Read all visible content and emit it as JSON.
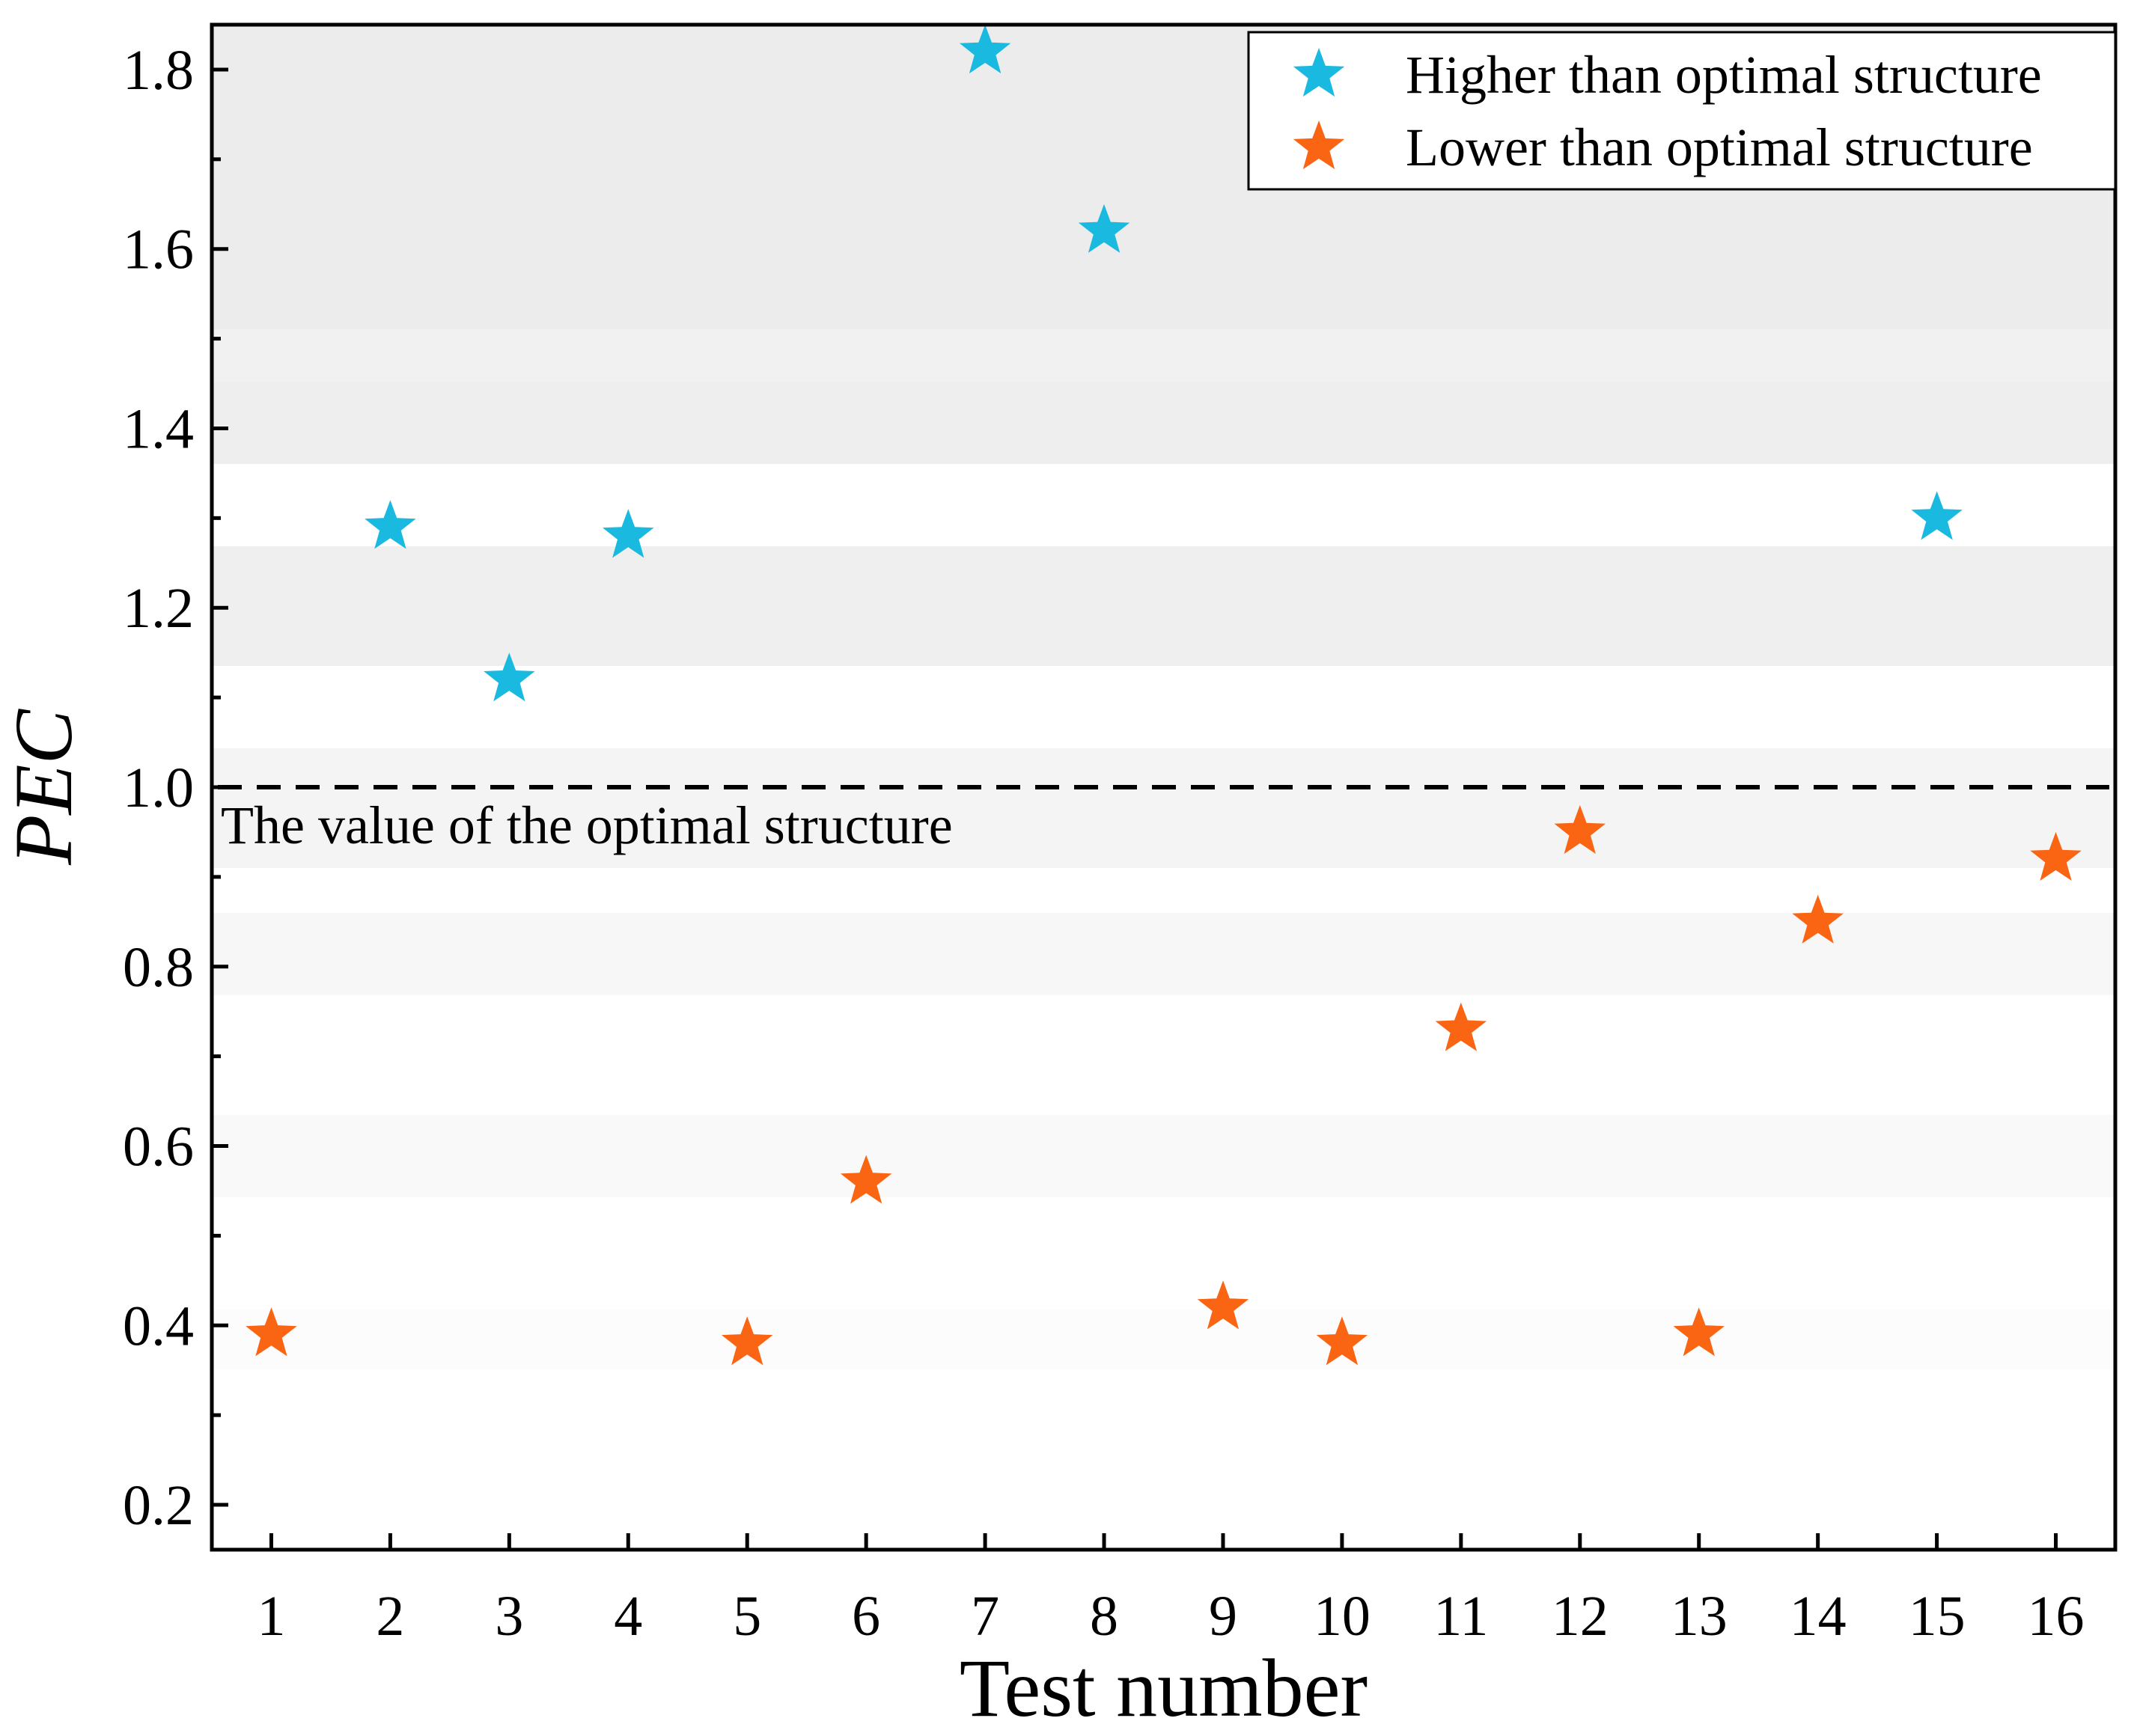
{
  "chart_data": {
    "type": "scatter",
    "title": "",
    "xlabel": "Test number",
    "ylabel": "PEC",
    "xlim": [
      0.5,
      16.5
    ],
    "ylim": [
      0.15,
      1.85
    ],
    "x_ticks": [
      "1",
      "2",
      "3",
      "4",
      "5",
      "6",
      "7",
      "8",
      "9",
      "10",
      "11",
      "12",
      "13",
      "14",
      "15",
      "16"
    ],
    "y_ticks": [
      "0.2",
      "0.4",
      "0.6",
      "0.8",
      "1.0",
      "1.2",
      "1.4",
      "1.6",
      "1.8"
    ],
    "reference_line": {
      "y": 1.0,
      "style": "dashed",
      "label": "The value of the optimal structure"
    },
    "legend_position": "top-right",
    "series": [
      {
        "name": "Higher than optimal structure",
        "color": "#1ab9e0",
        "marker": "star",
        "points": [
          {
            "x": 2,
            "y": 1.29
          },
          {
            "x": 3,
            "y": 1.12
          },
          {
            "x": 4,
            "y": 1.28
          },
          {
            "x": 7,
            "y": 1.82
          },
          {
            "x": 8,
            "y": 1.62
          },
          {
            "x": 15,
            "y": 1.3
          }
        ]
      },
      {
        "name": "Lower than optimal structure",
        "color": "#fa6514",
        "marker": "star",
        "points": [
          {
            "x": 1,
            "y": 0.39
          },
          {
            "x": 5,
            "y": 0.38
          },
          {
            "x": 6,
            "y": 0.56
          },
          {
            "x": 9,
            "y": 0.42
          },
          {
            "x": 10,
            "y": 0.38
          },
          {
            "x": 11,
            "y": 0.73
          },
          {
            "x": 12,
            "y": 0.95
          },
          {
            "x": 13,
            "y": 0.39
          },
          {
            "x": 14,
            "y": 0.85
          },
          {
            "x": 16,
            "y": 0.92
          }
        ]
      }
    ]
  }
}
